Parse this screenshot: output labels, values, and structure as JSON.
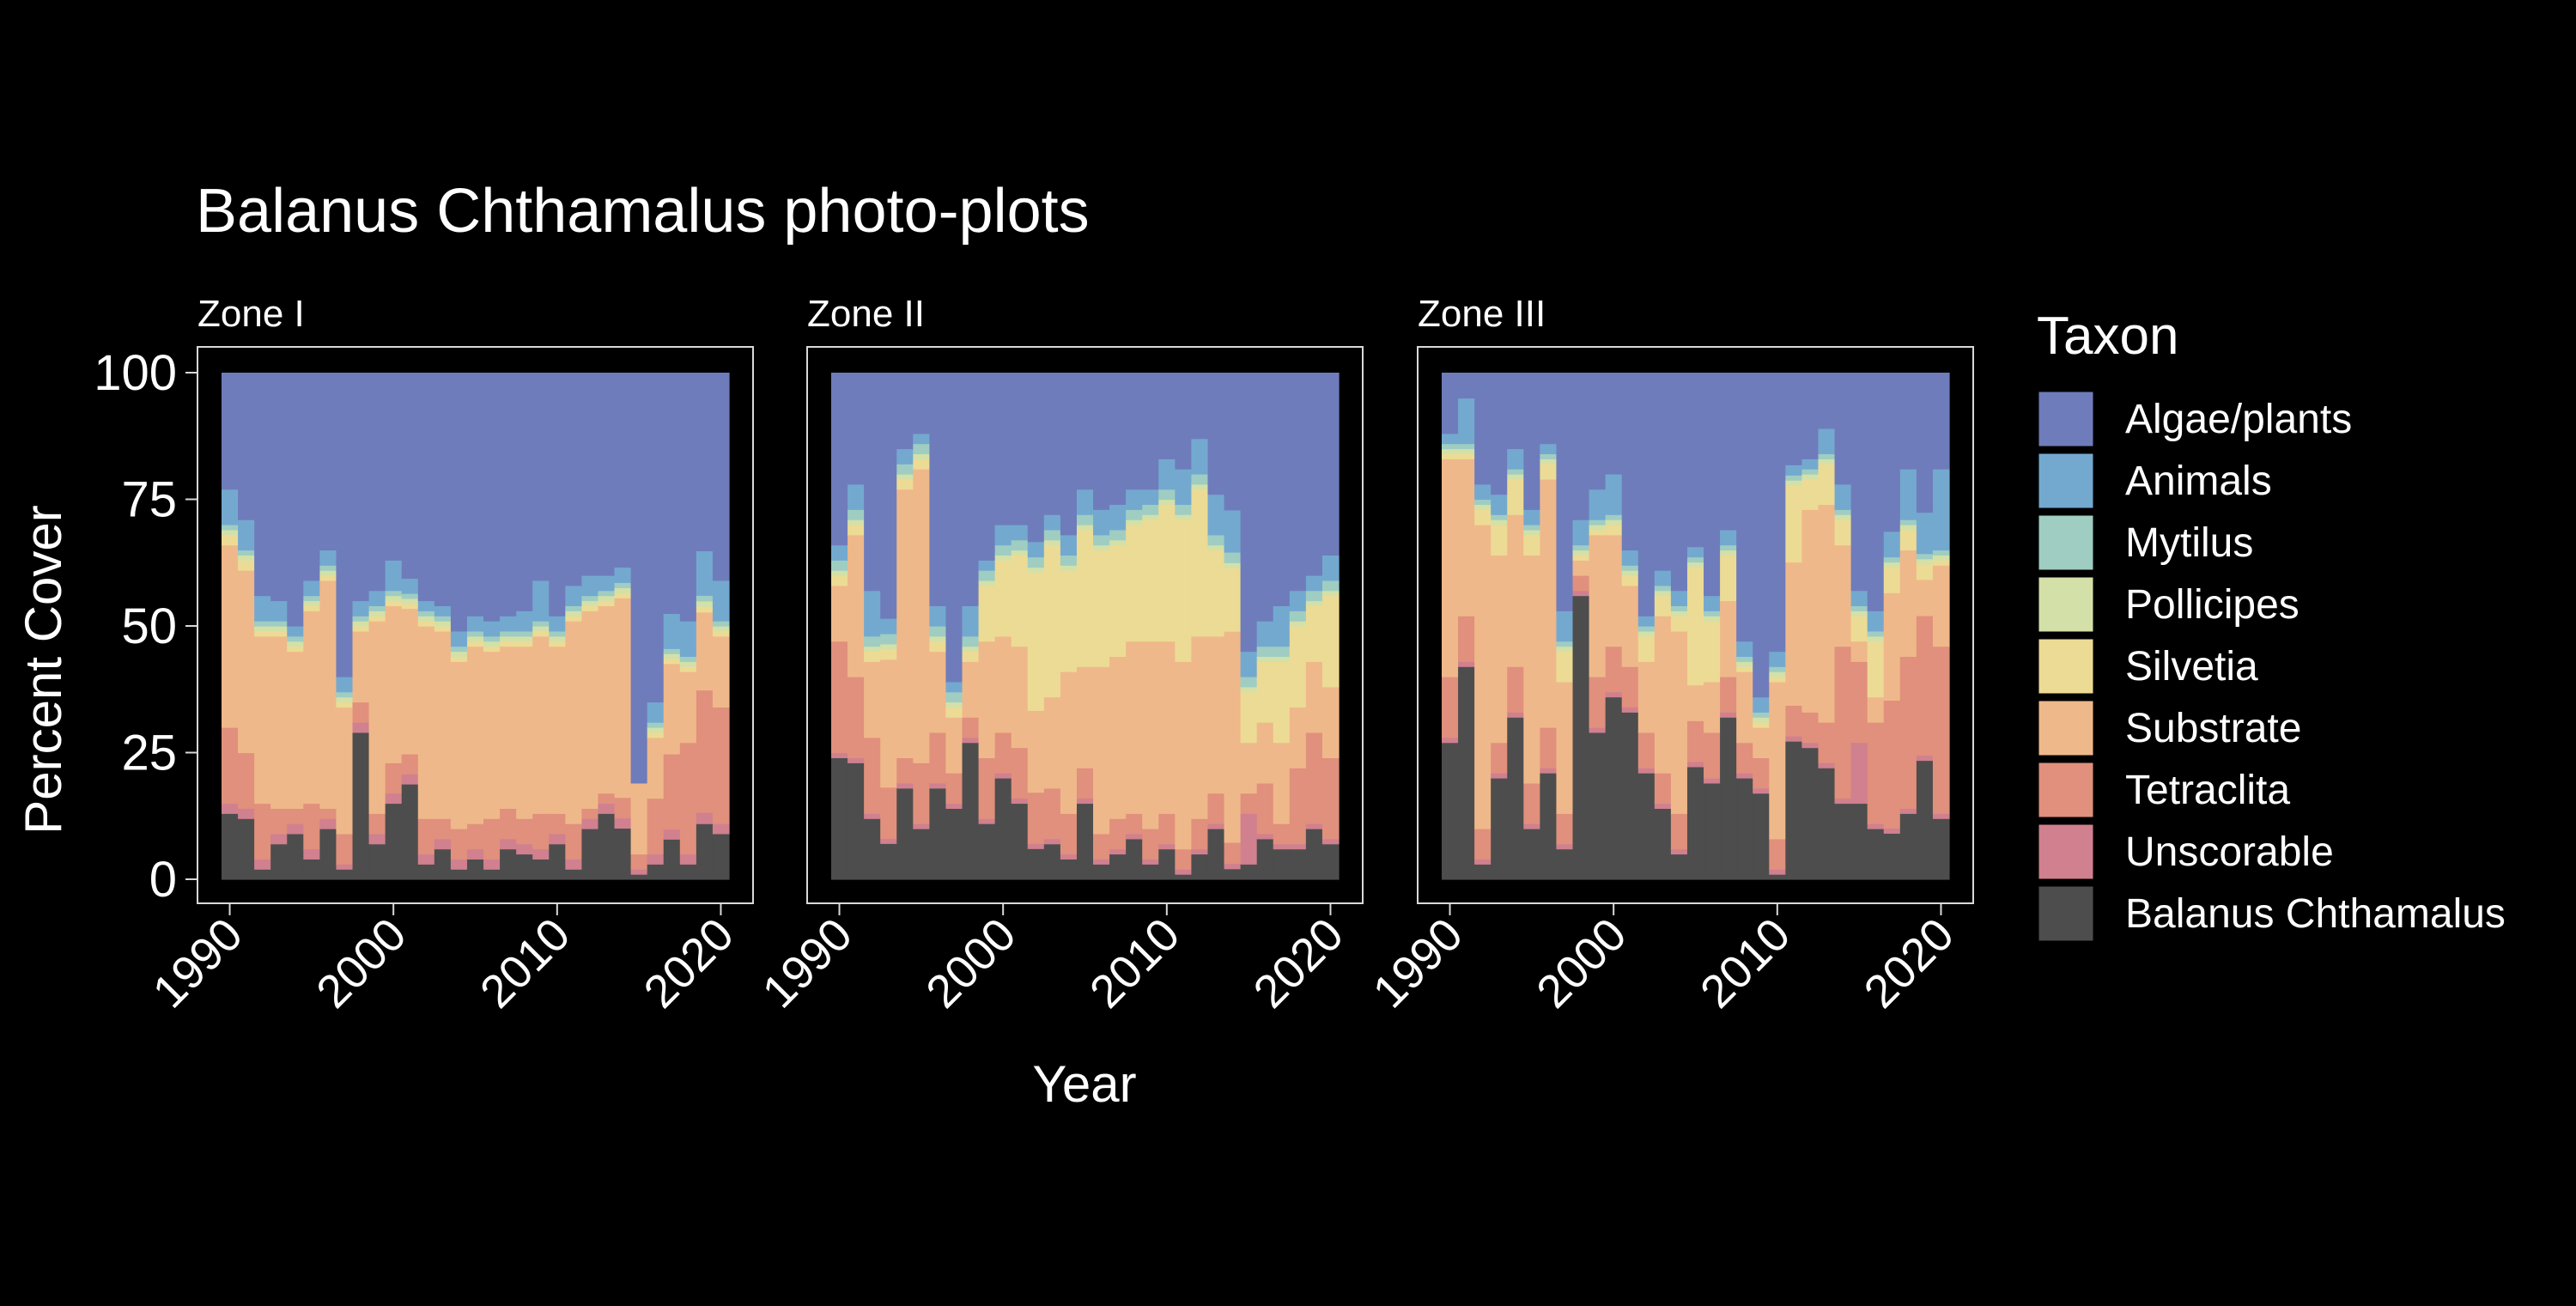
{
  "chart_data": {
    "type": "area",
    "title": "Balanus Chthamalus photo-plots",
    "xlabel": "Year",
    "ylabel": "Percent Cover",
    "xlim": [
      1990,
      2020
    ],
    "ylim": [
      0,
      100
    ],
    "x_ticks": [
      "1990",
      "2000",
      "2010",
      "2020"
    ],
    "y_ticks": [
      "0",
      "25",
      "50",
      "75",
      "100"
    ],
    "legend": {
      "title": "Taxon",
      "placement": "right",
      "order_top_to_bottom": [
        "Algae/plants",
        "Animals",
        "Mytilus",
        "Pollicipes",
        "Silvetia",
        "Substrate",
        "Tetraclita",
        "Unscorable",
        "Balanus Chthamalus"
      ]
    },
    "colors": {
      "Algae/plants": "#6f7cbb",
      "Animals": "#74a9cf",
      "Mytilus": "#9fcdc2",
      "Pollicipes": "#d3e0a8",
      "Silvetia": "#ecdb94",
      "Substrate": "#efb88a",
      "Tetraclita": "#e0907c",
      "Unscorable": "#d0808e",
      "Balanus Chthamalus": "#4d4d4d"
    },
    "panels": [
      {
        "name": "Zone I",
        "years": [
          1990,
          1991,
          1992,
          1993,
          1994,
          1995,
          1996,
          1997,
          1998,
          1999,
          2000,
          2001,
          2002,
          2003,
          2004,
          2005,
          2006,
          2007,
          2008,
          2009,
          2010,
          2011,
          2012,
          2013,
          2014,
          2015,
          2016,
          2017,
          2018,
          2019,
          2020
        ],
        "series": [
          {
            "name": "Balanus Chthamalus",
            "values": [
              13,
              12,
              2,
              7,
              9,
              4,
              10,
              2,
              29,
              7,
              15,
              19,
              3,
              6,
              2,
              4,
              2,
              6,
              5,
              4,
              7,
              2,
              10,
              13,
              10,
              1,
              3,
              8,
              3,
              10,
              9
            ]
          },
          {
            "name": "Unscorable",
            "values": [
              2,
              2,
              2,
              2,
              2,
              2,
              2,
              1,
              2,
              2,
              2,
              2,
              2,
              2,
              2,
              2,
              2,
              2,
              2,
              2,
              2,
              2,
              2,
              2,
              2,
              1,
              2,
              2,
              2,
              2,
              2
            ]
          },
          {
            "name": "Tetraclita",
            "values": [
              15,
              11,
              11,
              5,
              3,
              9,
              2,
              6,
              4,
              4,
              6,
              4,
              7,
              4,
              6,
              5,
              8,
              6,
              5,
              7,
              4,
              7,
              2,
              2,
              4,
              3,
              11,
              15,
              22,
              22,
              23
            ]
          },
          {
            "name": "Substrate",
            "values": [
              36,
              36,
              33,
              34,
              31,
              38,
              45,
              25,
              14,
              38,
              31,
              29,
              38,
              37,
              33,
              35,
              33,
              32,
              34,
              35,
              33,
              40,
              39,
              37,
              39,
              14,
              12,
              18,
              14,
              14,
              14
            ]
          },
          {
            "name": "Silvetia",
            "values": [
              2,
              2,
              1,
              1,
              1,
              1,
              1,
              1,
              1,
              1,
              1,
              1,
              1,
              1,
              1,
              1,
              1,
              1,
              1,
              1,
              1,
              1,
              1,
              1,
              1,
              0,
              1,
              1,
              1,
              1,
              1
            ]
          },
          {
            "name": "Pollicipes",
            "values": [
              1,
              1,
              1,
              1,
              1,
              1,
              1,
              1,
              1,
              1,
              1,
              1,
              1,
              1,
              1,
              1,
              1,
              1,
              1,
              1,
              1,
              1,
              1,
              1,
              1,
              0,
              1,
              1,
              1,
              1,
              1
            ]
          },
          {
            "name": "Mytilus",
            "values": [
              1,
              1,
              1,
              1,
              1,
              1,
              1,
              1,
              1,
              1,
              1,
              1,
              1,
              1,
              1,
              1,
              1,
              1,
              1,
              1,
              1,
              1,
              1,
              1,
              1,
              0,
              1,
              1,
              1,
              1,
              1
            ]
          },
          {
            "name": "Animals",
            "values": [
              7,
              6,
              5,
              4,
              2,
              3,
              3,
              3,
              3,
              3,
              6,
              3,
              2,
              2,
              3,
              3,
              3,
              3,
              4,
              8,
              3,
              4,
              4,
              3,
              3,
              0,
              4,
              7,
              7,
              8,
              8
            ]
          },
          {
            "name": "Algae/plants",
            "values": [
              23,
              29,
              44,
              45,
              50,
              41,
              35,
              60,
              45,
              43,
              37,
              41,
              45,
              46,
              51,
              48,
              49,
              48,
              47,
              41,
              48,
              42,
              40,
              40,
              38,
              81,
              65,
              48,
              49,
              32,
              41
            ]
          }
        ]
      },
      {
        "name": "Zone II",
        "years": [
          1990,
          1991,
          1992,
          1993,
          1994,
          1995,
          1996,
          1997,
          1998,
          1999,
          2000,
          2001,
          2002,
          2003,
          2004,
          2005,
          2006,
          2007,
          2008,
          2009,
          2010,
          2011,
          2012,
          2013,
          2014,
          2015,
          2016,
          2017,
          2018,
          2019,
          2020
        ],
        "series": [
          {
            "name": "Balanus Chthamalus",
            "values": [
              24,
              23,
              12,
              7,
              18,
              10,
              18,
              14,
              27,
              11,
              20,
              15,
              6,
              7,
              4,
              15,
              3,
              5,
              8,
              3,
              6,
              1,
              5,
              10,
              2,
              3,
              8,
              6,
              6,
              10,
              7
            ]
          },
          {
            "name": "Unscorable",
            "values": [
              1,
              1,
              1,
              1,
              1,
              1,
              1,
              1,
              1,
              1,
              1,
              1,
              1,
              1,
              1,
              1,
              1,
              1,
              1,
              1,
              1,
              1,
              1,
              1,
              1,
              10,
              1,
              1,
              1,
              1,
              1
            ]
          },
          {
            "name": "Tetraclita",
            "values": [
              22,
              16,
              15,
              10,
              5,
              12,
              10,
              6,
              4,
              12,
              8,
              10,
              10,
              10,
              8,
              6,
              5,
              6,
              4,
              6,
              6,
              4,
              6,
              6,
              4,
              4,
              10,
              4,
              15,
              18,
              16
            ]
          },
          {
            "name": "Substrate",
            "values": [
              11,
              28,
              15,
              25,
              53,
              58,
              16,
              11,
              11,
              23,
              19,
              20,
              16,
              18,
              28,
              20,
              33,
              32,
              34,
              37,
              34,
              37,
              36,
              31,
              40,
              10,
              12,
              16,
              12,
              14,
              14
            ]
          },
          {
            "name": "Silvetia",
            "values": [
              2,
              2,
              2,
              2,
              2,
              2,
              2,
              2,
              2,
              11,
              15,
              18,
              27,
              30,
              20,
              27,
              23,
              22,
              23,
              24,
              27,
              28,
              29,
              17,
              12,
              10,
              12,
              16,
              16,
              11,
              18
            ]
          },
          {
            "name": "Pollicipes",
            "values": [
              1,
              1,
              1,
              1,
              1,
              1,
              1,
              1,
              1,
              1,
              1,
              1,
              1,
              1,
              1,
              1,
              1,
              1,
              1,
              1,
              1,
              1,
              1,
              1,
              1,
              1,
              1,
              1,
              1,
              1,
              1
            ]
          },
          {
            "name": "Mytilus",
            "values": [
              2,
              2,
              2,
              2,
              2,
              2,
              2,
              2,
              2,
              2,
              2,
              2,
              2,
              2,
              2,
              2,
              2,
              2,
              2,
              2,
              2,
              2,
              2,
              2,
              2,
              2,
              2,
              2,
              2,
              2,
              2
            ]
          },
          {
            "name": "Animals",
            "values": [
              3,
              5,
              9,
              3,
              3,
              2,
              4,
              2,
              6,
              2,
              4,
              3,
              3,
              3,
              4,
              5,
              5,
              5,
              4,
              3,
              6,
              7,
              7,
              8,
              8,
              5,
              5,
              8,
              4,
              3,
              5
            ]
          },
          {
            "name": "Algae/plants",
            "values": [
              34,
              22,
              43,
              48,
              15,
              12,
              46,
              61,
              46,
              37,
              30,
              30,
              33,
              28,
              32,
              23,
              27,
              26,
              23,
              23,
              17,
              19,
              13,
              24,
              26,
              55,
              49,
              46,
              43,
              40,
              36
            ]
          }
        ]
      },
      {
        "name": "Zone III",
        "years": [
          1990,
          1991,
          1992,
          1993,
          1994,
          1995,
          1996,
          1997,
          1998,
          1999,
          2000,
          2001,
          2002,
          2003,
          2004,
          2005,
          2006,
          2007,
          2008,
          2009,
          2010,
          2011,
          2012,
          2013,
          2014,
          2015,
          2016,
          2017,
          2018,
          2019,
          2020
        ],
        "series": [
          {
            "name": "Balanus Chthamalus",
            "values": [
              27,
              42,
              3,
              20,
              32,
              10,
              21,
              6,
              56,
              29,
              36,
              33,
              21,
              14,
              5,
              22,
              19,
              32,
              20,
              17,
              1,
              27,
              26,
              22,
              15,
              15,
              10,
              9,
              13,
              23,
              12
            ]
          },
          {
            "name": "Unscorable",
            "values": [
              1,
              1,
              1,
              1,
              1,
              1,
              1,
              1,
              1,
              1,
              1,
              1,
              1,
              1,
              1,
              1,
              1,
              1,
              1,
              1,
              1,
              1,
              1,
              1,
              1,
              12,
              1,
              1,
              1,
              1,
              1
            ]
          },
          {
            "name": "Tetraclita",
            "values": [
              12,
              9,
              6,
              6,
              9,
              8,
              8,
              6,
              3,
              10,
              9,
              8,
              7,
              6,
              7,
              8,
              9,
              7,
              6,
              6,
              6,
              6,
              6,
              8,
              30,
              16,
              20,
              25,
              30,
              27,
              33
            ]
          },
          {
            "name": "Substrate",
            "values": [
              43,
              31,
              60,
              37,
              30,
              45,
              49,
              26,
              3,
              28,
              22,
              16,
              14,
              31,
              36,
              7,
              10,
              15,
              14,
              6,
              31,
              28,
              40,
              43,
              20,
              4,
              5,
              21,
              21,
              7,
              16
            ]
          },
          {
            "name": "Silvetia",
            "values": [
              1,
              1,
              3,
              6,
              7,
              4,
              3,
              6,
              1,
              1,
              2,
              2,
              5,
              4,
              3,
              23,
              12,
              9,
              1,
              1,
              1,
              15,
              6,
              8,
              5,
              5,
              11,
              5,
              4,
              3,
              1
            ]
          },
          {
            "name": "Pollicipes",
            "values": [
              1,
              1,
              1,
              1,
              1,
              1,
              1,
              1,
              1,
              1,
              1,
              1,
              1,
              1,
              1,
              1,
              1,
              1,
              1,
              1,
              1,
              1,
              1,
              1,
              1,
              1,
              1,
              1,
              1,
              1,
              1
            ]
          },
          {
            "name": "Mytilus",
            "values": [
              1,
              1,
              1,
              1,
              1,
              1,
              1,
              1,
              1,
              1,
              1,
              1,
              1,
              1,
              1,
              1,
              1,
              1,
              1,
              1,
              1,
              1,
              1,
              1,
              1,
              1,
              1,
              1,
              1,
              1,
              1
            ]
          },
          {
            "name": "Animals",
            "values": [
              2,
              9,
              3,
              4,
              4,
              3,
              2,
              6,
              5,
              6,
              8,
              3,
              2,
              3,
              3,
              2,
              3,
              3,
              3,
              3,
              3,
              2,
              2,
              5,
              5,
              3,
              4,
              5,
              10,
              8,
              16
            ]
          },
          {
            "name": "Algae/plants",
            "values": [
              12,
              5,
              22,
              24,
              15,
              27,
              14,
              47,
              29,
              23,
              20,
              35,
              48,
              39,
              43,
              34,
              44,
              31,
              53,
              64,
              55,
              18,
              17,
              11,
              22,
              43,
              47,
              31,
              19,
              27,
              19
            ]
          }
        ]
      }
    ]
  }
}
